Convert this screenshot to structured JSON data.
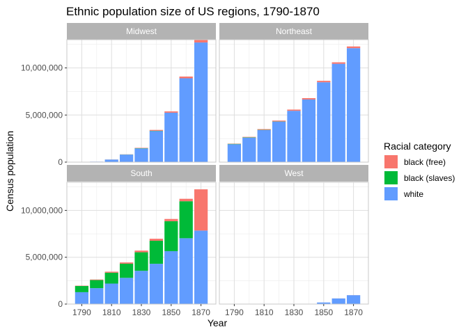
{
  "chart_data": {
    "type": "bar",
    "stacked": true,
    "title": "Ethnic population size of US regions, 1790-1870",
    "xlabel": "Year",
    "ylabel": "Census population",
    "x": [
      1790,
      1800,
      1810,
      1820,
      1830,
      1840,
      1850,
      1860,
      1870
    ],
    "x_tick_values": [
      1790,
      1810,
      1830,
      1850,
      1870
    ],
    "x_tick_labels": [
      "1790",
      "1810",
      "1830",
      "1850",
      "1870"
    ],
    "ylim": [
      0,
      13000000
    ],
    "y_tick_values": [
      0,
      5000000,
      10000000
    ],
    "y_tick_labels": [
      "0",
      "5,000,000",
      "10,000,000"
    ],
    "grid": true,
    "legend": {
      "title": "Racial category",
      "placement": "right",
      "entries": [
        {
          "label": "black (free)",
          "color": "#F8766D"
        },
        {
          "label": "black (slaves)",
          "color": "#00BA38"
        },
        {
          "label": "white",
          "color": "#619CFF"
        }
      ]
    },
    "stack_order": [
      "white",
      "black (slaves)",
      "black (free)"
    ],
    "panels": [
      {
        "name": "Midwest",
        "series": {
          "white": [
            0,
            50000,
            270000,
            800000,
            1450000,
            3300000,
            5250000,
            8900000,
            12700000
          ],
          "black (slaves)": [
            0,
            0,
            3000,
            10000,
            25000,
            30000,
            0,
            0,
            0
          ],
          "black (free)": [
            0,
            1000,
            7000,
            15000,
            40000,
            90000,
            135000,
            185000,
            275000
          ]
        }
      },
      {
        "name": "Northeast",
        "series": {
          "white": [
            1900000,
            2600000,
            3400000,
            4300000,
            5450000,
            6650000,
            8480000,
            10440000,
            12100000
          ],
          "black (slaves)": [
            40000,
            36000,
            27000,
            18000,
            2800,
            800,
            200,
            0,
            0
          ],
          "black (free)": [
            27000,
            47000,
            75000,
            93000,
            125000,
            142000,
            150000,
            156000,
            180000
          ]
        }
      },
      {
        "name": "South",
        "series": {
          "white": [
            1270000,
            1700000,
            2190000,
            2800000,
            3550000,
            4300000,
            5650000,
            7030000,
            7850000
          ],
          "black (slaves)": [
            660000,
            860000,
            1160000,
            1510000,
            1980000,
            2460000,
            3200000,
            3950000,
            0
          ],
          "black (free)": [
            33000,
            62000,
            110000,
            135000,
            180000,
            215000,
            236000,
            260000,
            4400000
          ]
        }
      },
      {
        "name": "West",
        "series": {
          "white": [
            0,
            0,
            0,
            0,
            0,
            0,
            170000,
            600000,
            950000
          ],
          "black (slaves)": [
            0,
            0,
            0,
            0,
            0,
            0,
            0,
            0,
            0
          ],
          "black (free)": [
            0,
            0,
            0,
            0,
            0,
            0,
            1000,
            4000,
            6000
          ]
        }
      }
    ]
  }
}
